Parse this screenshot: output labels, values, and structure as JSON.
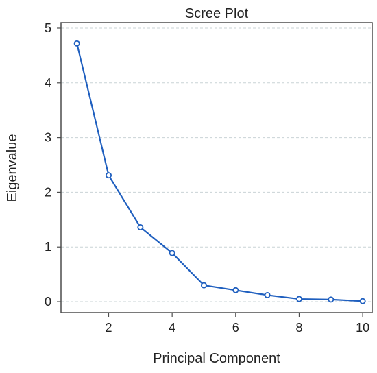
{
  "chart_data": {
    "type": "line",
    "title": "Scree Plot",
    "xlabel": "Principal Component",
    "ylabel": "Eigenvalue",
    "x": [
      1,
      2,
      3,
      4,
      5,
      6,
      7,
      8,
      9,
      10
    ],
    "series": [
      {
        "values": [
          4.72,
          2.31,
          1.36,
          0.89,
          0.3,
          0.21,
          0.12,
          0.05,
          0.04,
          0.01
        ]
      }
    ],
    "xlim": [
      0.5,
      10.3
    ],
    "ylim": [
      -0.2,
      5.1
    ],
    "xticks": [
      "2",
      "4",
      "6",
      "8",
      "10"
    ],
    "yticks": [
      "0",
      "1",
      "2",
      "3",
      "4",
      "5"
    ],
    "grid": "horizontal dashed",
    "line_color": "#1f5fbf",
    "grid_color": "#c9d3d6",
    "frame_color": "#4d4d4d"
  }
}
